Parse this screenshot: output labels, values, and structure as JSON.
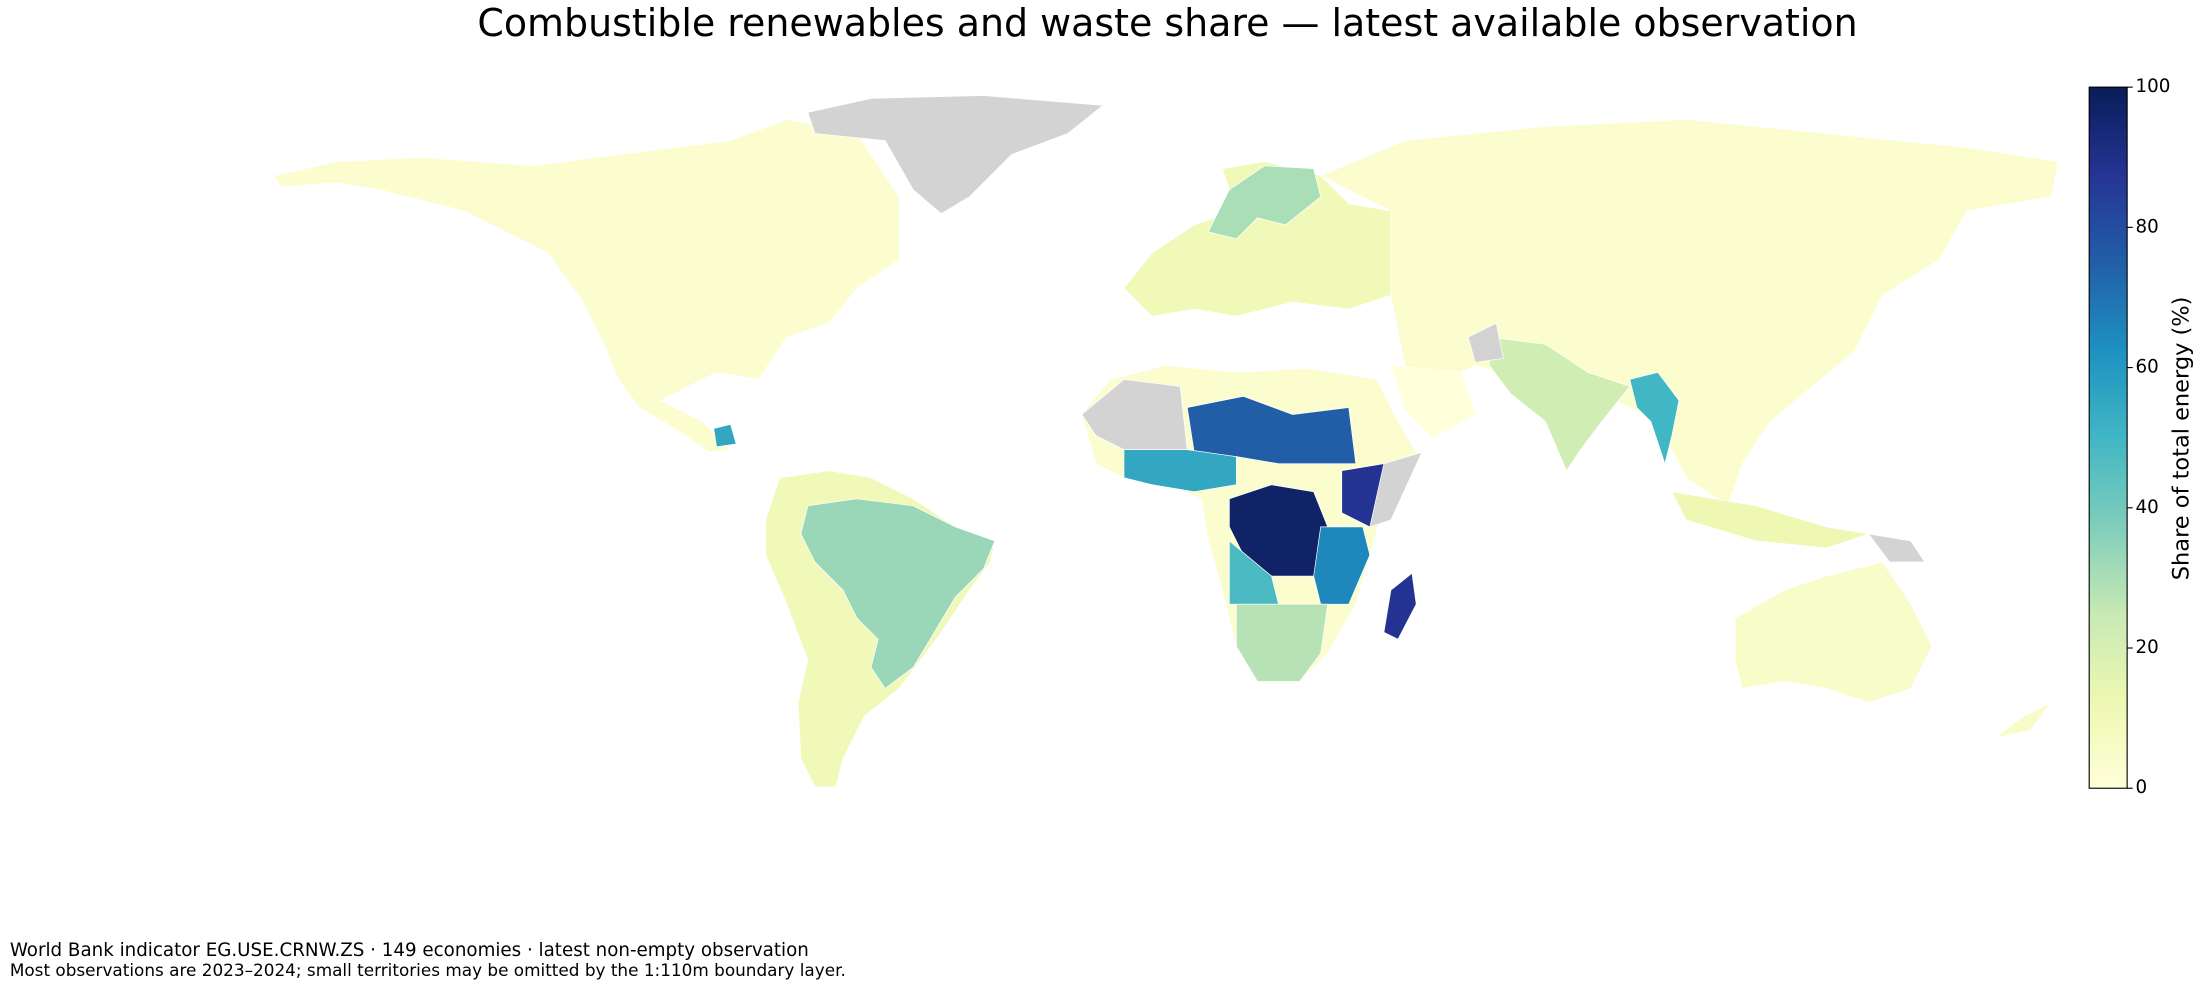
{
  "chart_data": {
    "type": "choropleth",
    "title": "Combustible renewables and waste share — latest available observation",
    "colorbar_label": "Share of total energy (%)",
    "colormap": "YlGnBu",
    "clim": [
      0,
      100
    ],
    "cticks": [
      0,
      20,
      40,
      60,
      80,
      100
    ],
    "values": [
      3,
      55,
      10,
      33,
      10,
      30,
      3,
      0,
      22,
      50,
      12,
      3,
      75,
      55,
      97,
      88,
      65,
      48,
      28,
      88,
      5,
      5
    ],
    "notes": [
      "World Bank indicator EG.USE.CRNW.ZS · 149 economies · latest non-empty observation",
      "Most observations are 2023–2024; small territories may be omitted by the 1:110m boundary layer."
    ]
  }
}
